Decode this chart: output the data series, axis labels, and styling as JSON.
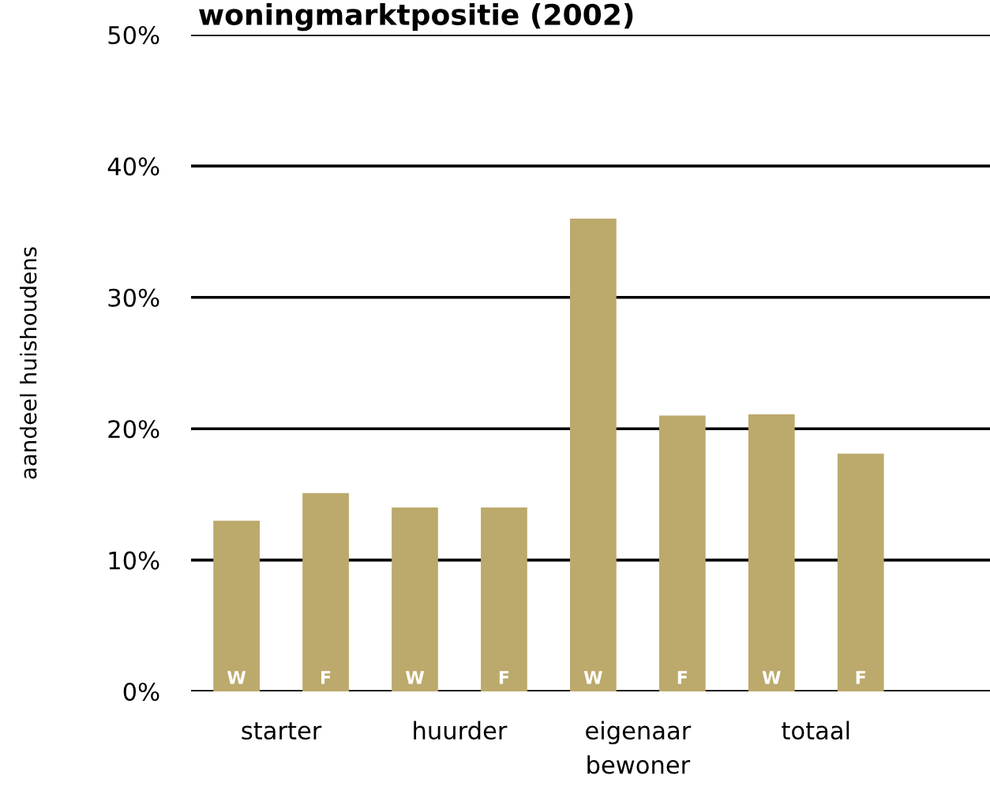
{
  "chart_data": {
    "type": "bar",
    "title": "woningmarktpositie (2002)",
    "ylabel": "aandeel huishoudens",
    "categories": [
      "W",
      "F",
      "W",
      "F",
      "W",
      "F",
      "W",
      "F"
    ],
    "values": [
      13.0,
      15.1,
      14.0,
      14.0,
      36.0,
      21.0,
      21.1,
      18.1
    ],
    "color": "#bca96c",
    "ylim": [
      0,
      50
    ],
    "yticks": [
      {
        "value": 0,
        "label": "0%"
      },
      {
        "value": 10,
        "label": "10%"
      },
      {
        "value": 20,
        "label": "20%"
      },
      {
        "value": 30,
        "label": "30%"
      },
      {
        "value": 40,
        "label": "40%"
      },
      {
        "value": 50,
        "label": "50%"
      }
    ],
    "grid": "y",
    "annotations": [
      "starter",
      "huurder",
      "eigenaar\nbewoner",
      "totaal"
    ]
  }
}
